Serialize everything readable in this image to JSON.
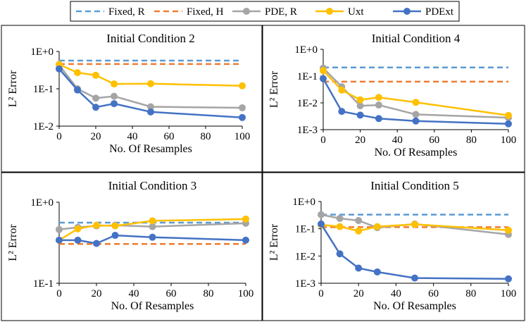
{
  "colors": {
    "fixed_r": "#5B9BD5",
    "fixed_h": "#ED7D31",
    "pde_r": "#A5A5A5",
    "uxt": "#FFC000",
    "pdext": "#4472C4",
    "frame": "#000000"
  },
  "legend": {
    "placement": "top",
    "items": [
      {
        "key": "fixed_r",
        "label": "Fixed, R",
        "style": "dashed"
      },
      {
        "key": "fixed_h",
        "label": "Fixed, H",
        "style": "dashed"
      },
      {
        "key": "pde_r",
        "label": "PDE, R",
        "style": "marker-line"
      },
      {
        "key": "uxt",
        "label": "Uxt",
        "style": "marker-line"
      },
      {
        "key": "pdext",
        "label": "PDExt",
        "style": "marker-line"
      }
    ]
  },
  "chart_data": [
    {
      "type": "line",
      "title": "Initial Condition 2",
      "xlabel": "No. Of Resamples",
      "ylabel": "L² Error",
      "yscale": "log",
      "xlim": [
        0,
        100
      ],
      "ylim": [
        0.01,
        1
      ],
      "x_ticks": [
        "0",
        "20",
        "40",
        "60",
        "80",
        "100"
      ],
      "y_ticks": [
        "1E+0",
        "1E-1",
        "1E-2"
      ],
      "grid": false,
      "series": [
        {
          "name": "Fixed, R",
          "key": "fixed_r",
          "kind": "hline",
          "values": [
            0.57
          ]
        },
        {
          "name": "Fixed, H",
          "key": "fixed_h",
          "kind": "hline",
          "values": [
            0.46
          ]
        },
        {
          "name": "PDE, R",
          "key": "pde_r",
          "x": [
            0,
            10,
            20,
            30,
            50,
            100
          ],
          "values": [
            0.43,
            0.1,
            0.056,
            0.063,
            0.033,
            0.031
          ]
        },
        {
          "name": "Uxt",
          "key": "uxt",
          "x": [
            0,
            10,
            20,
            30,
            50,
            100
          ],
          "values": [
            0.45,
            0.27,
            0.23,
            0.135,
            0.137,
            0.12
          ]
        },
        {
          "name": "PDExt",
          "key": "pdext",
          "x": [
            0,
            10,
            20,
            30,
            50,
            100
          ],
          "values": [
            0.34,
            0.093,
            0.032,
            0.04,
            0.024,
            0.017
          ]
        }
      ]
    },
    {
      "type": "line",
      "title": "Initial Condition 4",
      "xlabel": "No. Of Resamples",
      "ylabel": "L² Error",
      "yscale": "log",
      "xlim": [
        0,
        100
      ],
      "ylim": [
        0.001,
        1
      ],
      "x_ticks": [
        "0",
        "20",
        "40",
        "60",
        "80",
        "100"
      ],
      "y_ticks": [
        "1E+0",
        "1E-1",
        "1E-2",
        "1E-3"
      ],
      "grid": false,
      "series": [
        {
          "name": "Fixed, R",
          "key": "fixed_r",
          "kind": "hline",
          "values": [
            0.21
          ]
        },
        {
          "name": "Fixed, H",
          "key": "fixed_h",
          "kind": "hline",
          "values": [
            0.062
          ]
        },
        {
          "name": "PDE, R",
          "key": "pde_r",
          "x": [
            0,
            10,
            20,
            30,
            50,
            100
          ],
          "values": [
            0.2,
            0.04,
            0.0078,
            0.0083,
            0.0037,
            0.0028
          ]
        },
        {
          "name": "Uxt",
          "key": "uxt",
          "x": [
            0,
            10,
            20,
            30,
            50,
            100
          ],
          "values": [
            0.16,
            0.03,
            0.013,
            0.016,
            0.0105,
            0.0034
          ]
        },
        {
          "name": "PDExt",
          "key": "pdext",
          "x": [
            0,
            10,
            20,
            30,
            50,
            100
          ],
          "values": [
            0.08,
            0.0048,
            0.0035,
            0.0026,
            0.0021,
            0.00165
          ]
        }
      ]
    },
    {
      "type": "line",
      "title": "Initial Condition 3",
      "xlabel": "No. Of Resamples",
      "ylabel": "L² Error",
      "yscale": "log",
      "xlim": [
        0,
        100
      ],
      "ylim": [
        0.1,
        1
      ],
      "x_ticks": [
        "0",
        "20",
        "40",
        "60",
        "80",
        "100"
      ],
      "y_ticks": [
        "1E+0",
        "1E-1"
      ],
      "grid": false,
      "series": [
        {
          "name": "Fixed, R",
          "key": "fixed_r",
          "kind": "hline",
          "values": [
            0.56
          ]
        },
        {
          "name": "Fixed, H",
          "key": "fixed_h",
          "kind": "hline",
          "values": [
            0.305
          ]
        },
        {
          "name": "PDE, R",
          "key": "pde_r",
          "x": [
            0,
            10,
            20,
            30,
            50,
            100
          ],
          "values": [
            0.46,
            0.49,
            0.51,
            0.52,
            0.5,
            0.55
          ]
        },
        {
          "name": "Uxt",
          "key": "uxt",
          "x": [
            0,
            10,
            20,
            30,
            50,
            100
          ],
          "values": [
            0.34,
            0.47,
            0.52,
            0.51,
            0.59,
            0.62
          ]
        },
        {
          "name": "PDExt",
          "key": "pdext",
          "x": [
            0,
            10,
            20,
            30,
            50,
            100
          ],
          "values": [
            0.34,
            0.34,
            0.31,
            0.39,
            0.37,
            0.34
          ]
        }
      ]
    },
    {
      "type": "line",
      "title": "Initial Condition 5",
      "xlabel": "No. Of Resamples",
      "ylabel": "L² Error",
      "yscale": "log",
      "xlim": [
        0,
        100
      ],
      "ylim": [
        0.001,
        1
      ],
      "x_ticks": [
        "0",
        "20",
        "40",
        "60",
        "80",
        "100"
      ],
      "y_ticks": [
        "1E+0",
        "1E-1",
        "1E-2",
        "1E-3"
      ],
      "grid": false,
      "series": [
        {
          "name": "Fixed, R",
          "key": "fixed_r",
          "kind": "hline",
          "values": [
            0.33
          ]
        },
        {
          "name": "Fixed, H",
          "key": "fixed_h",
          "kind": "hline",
          "values": [
            0.115
          ]
        },
        {
          "name": "PDE, R",
          "key": "pde_r",
          "x": [
            0,
            10,
            20,
            30,
            50,
            100
          ],
          "values": [
            0.33,
            0.24,
            0.2,
            0.11,
            0.15,
            0.062
          ]
        },
        {
          "name": "Uxt",
          "key": "uxt",
          "x": [
            0,
            10,
            20,
            30,
            50,
            100
          ],
          "values": [
            0.14,
            0.12,
            0.083,
            0.12,
            0.145,
            0.088
          ]
        },
        {
          "name": "PDExt",
          "key": "pdext",
          "x": [
            0,
            10,
            20,
            30,
            50,
            100
          ],
          "values": [
            0.15,
            0.012,
            0.0036,
            0.0026,
            0.00155,
            0.00145
          ]
        }
      ]
    }
  ]
}
